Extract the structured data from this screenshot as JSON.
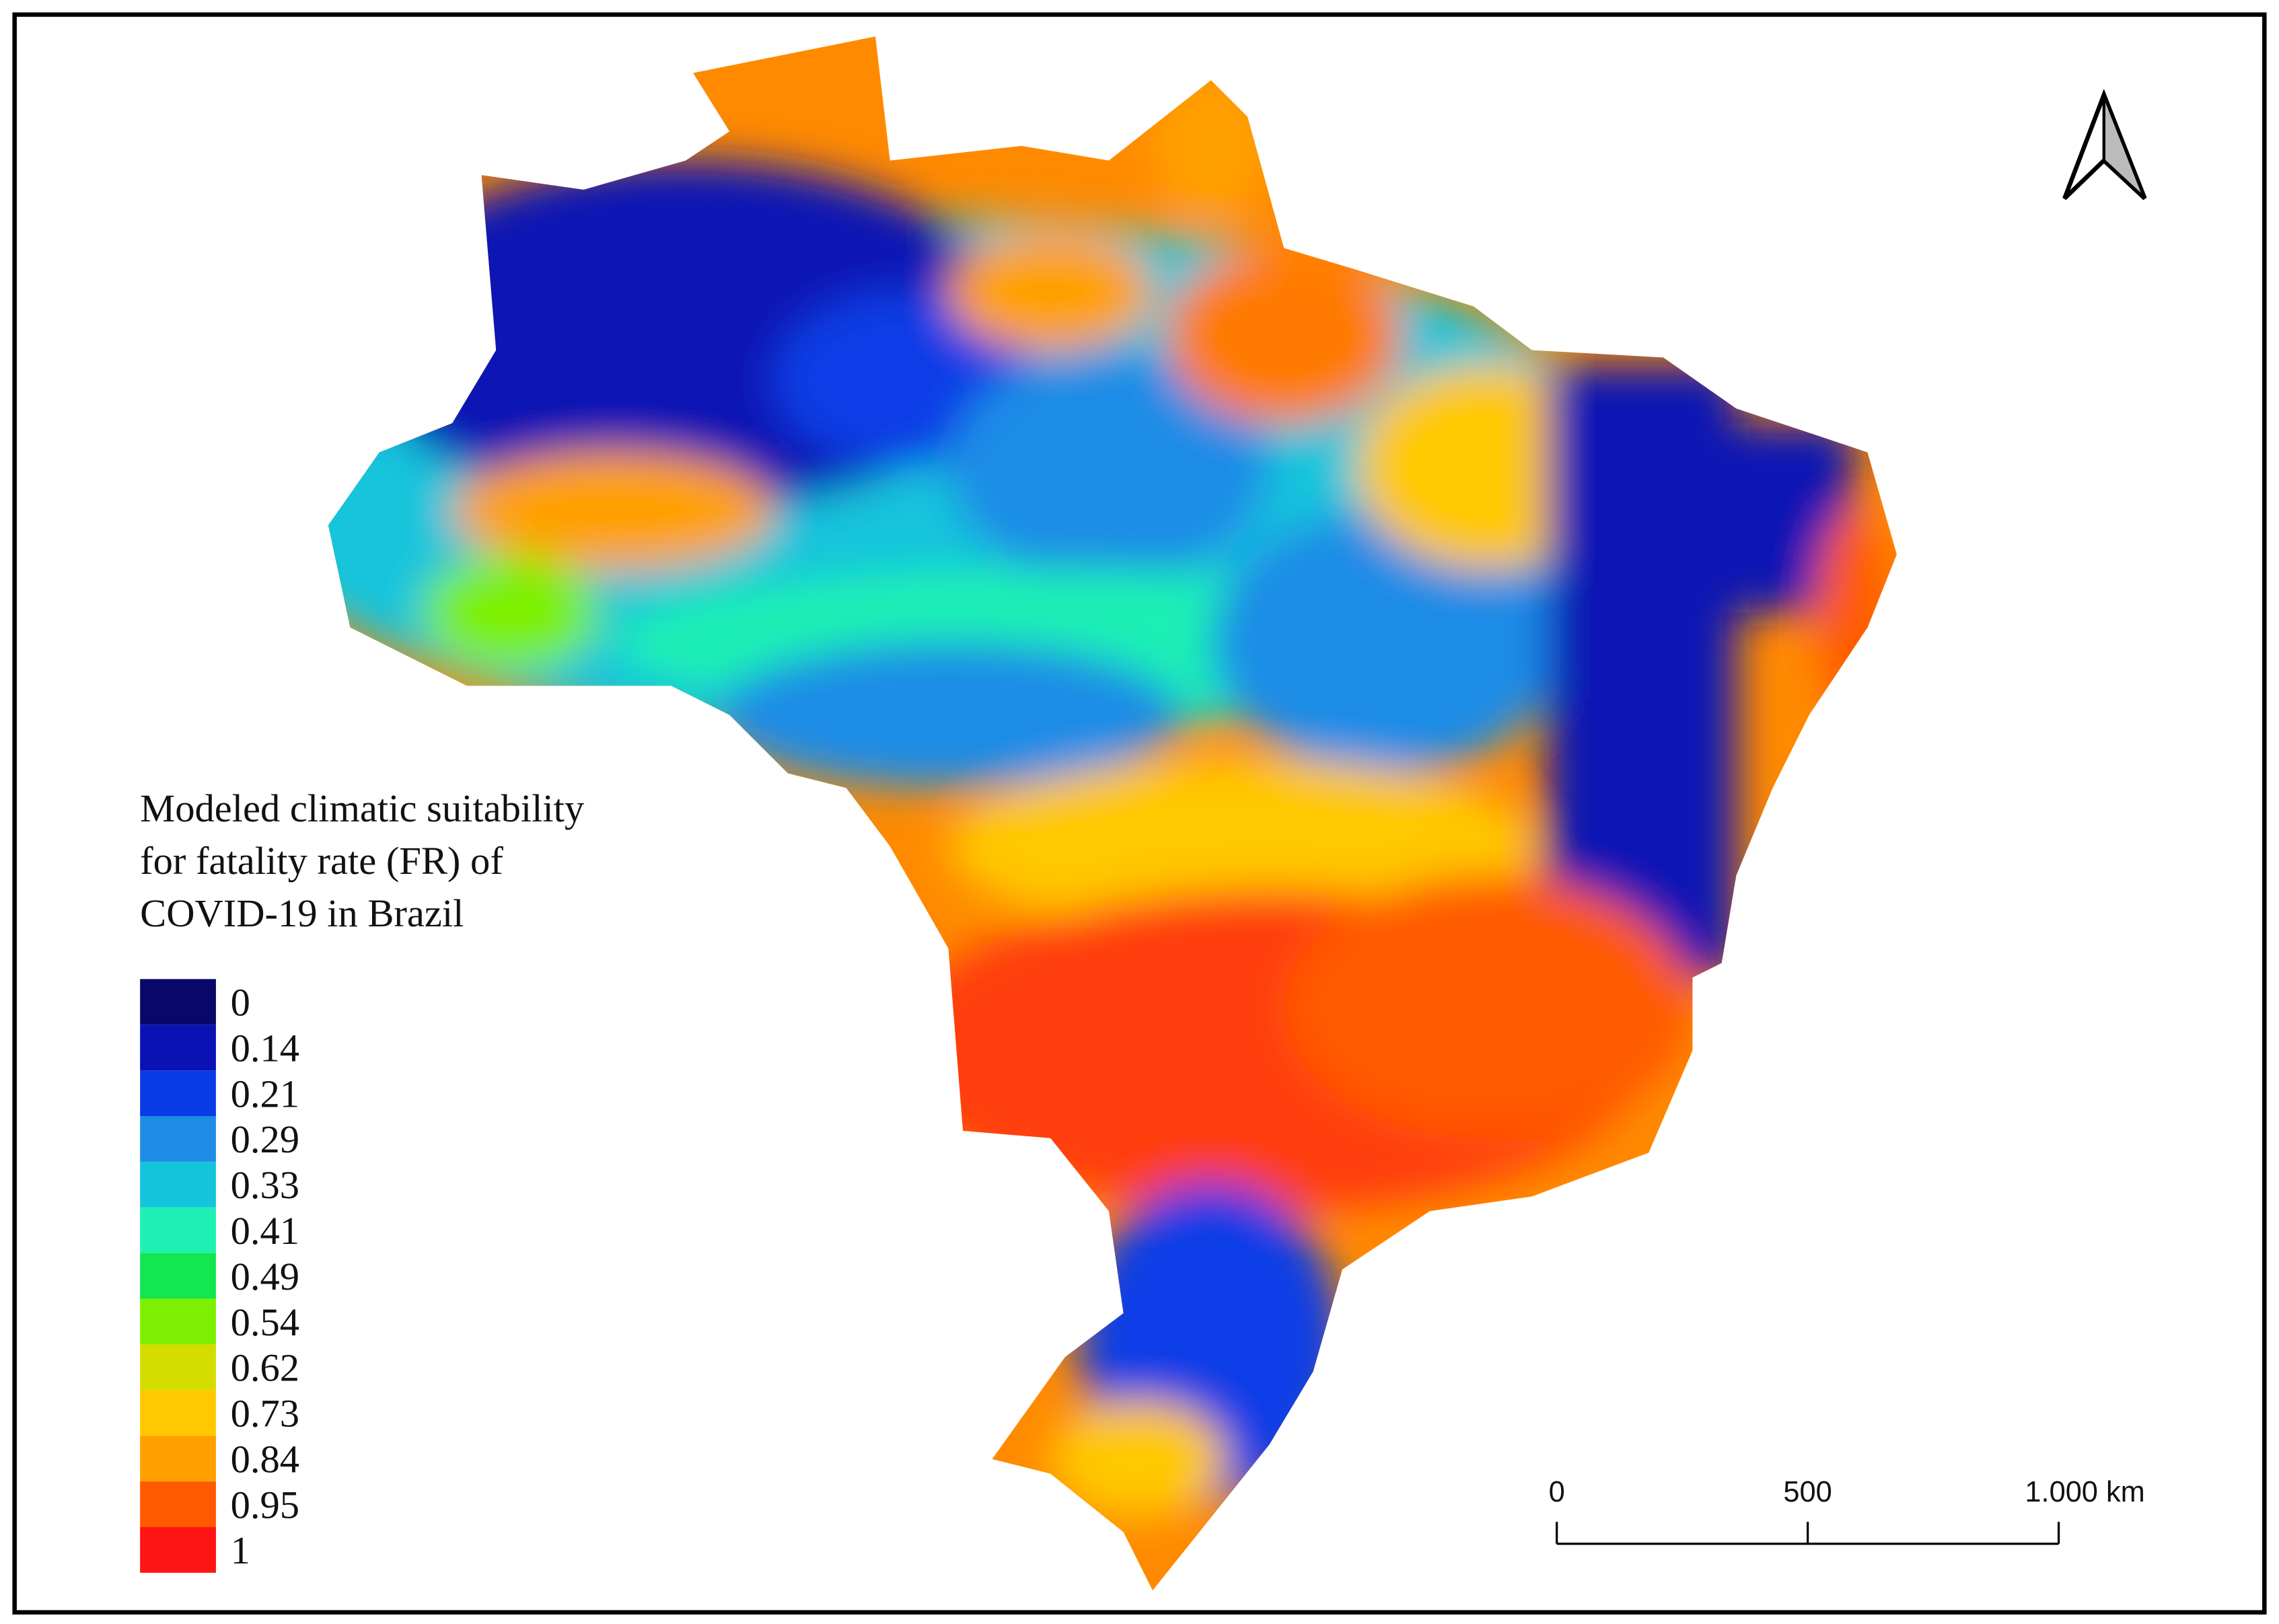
{
  "title_lines": [
    "Modeled climatic suitability",
    "for fatality rate (FR) of",
    "COVID-19 in Brazil"
  ],
  "legend": [
    {
      "value": 0,
      "color": "#08086a"
    },
    {
      "value": 0.14,
      "color": "#0a12b4"
    },
    {
      "value": 0.21,
      "color": "#0a3ce6"
    },
    {
      "value": 0.29,
      "color": "#1e8ce6"
    },
    {
      "value": 0.33,
      "color": "#14c4dc"
    },
    {
      "value": 0.41,
      "color": "#1ef0b4"
    },
    {
      "value": 0.49,
      "color": "#14e650"
    },
    {
      "value": 0.54,
      "color": "#7cf000"
    },
    {
      "value": 0.62,
      "color": "#d4dc00"
    },
    {
      "value": 0.73,
      "color": "#ffc800"
    },
    {
      "value": 0.84,
      "color": "#ffa000"
    },
    {
      "value": 0.95,
      "color": "#ff5a00"
    },
    {
      "value": 1,
      "color": "#ff1414"
    }
  ],
  "scale_bar": {
    "xlim": [
      0,
      1000
    ],
    "xticks": [
      0,
      500,
      {
        "value": 1000,
        "label": "1.000 km"
      }
    ]
  }
}
